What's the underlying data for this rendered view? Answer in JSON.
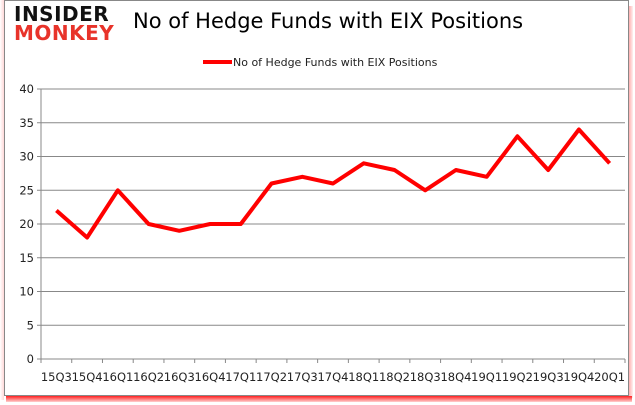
{
  "logo": {
    "line1": "INSIDER",
    "line2": "MONKEY"
  },
  "title": "No of Hedge Funds with EIX Positions",
  "legend": {
    "label": "No of Hedge Funds with EIX Positions",
    "color": "#ff0000"
  },
  "colors": {
    "line": "#ff0000",
    "grid": "#888888",
    "axis": "#888888",
    "accent": "#e8332a"
  },
  "chart_data": {
    "type": "line",
    "title": "No of Hedge Funds with EIX Positions",
    "xlabel": "",
    "ylabel": "",
    "ylim": [
      0,
      40
    ],
    "yticks": [
      0,
      5,
      10,
      15,
      20,
      25,
      30,
      35,
      40
    ],
    "grid": true,
    "legend_position": "top",
    "categories": [
      "15Q3",
      "15Q4",
      "16Q1",
      "16Q2",
      "16Q3",
      "16Q4",
      "17Q1",
      "17Q2",
      "17Q3",
      "17Q4",
      "18Q1",
      "18Q2",
      "18Q3",
      "18Q4",
      "19Q1",
      "19Q2",
      "19Q3",
      "19Q4",
      "20Q1"
    ],
    "series": [
      {
        "name": "No of Hedge Funds with EIX Positions",
        "values": [
          22,
          18,
          25,
          20,
          19,
          20,
          20,
          26,
          27,
          26,
          29,
          28,
          25,
          28,
          27,
          33,
          28,
          34,
          29
        ]
      }
    ]
  }
}
